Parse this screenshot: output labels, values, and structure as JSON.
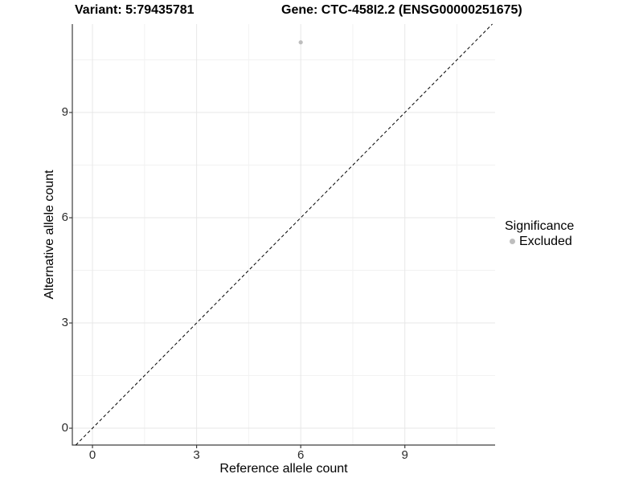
{
  "chart_data": {
    "type": "scatter",
    "title_left": "Variant: 5:79435781",
    "title_right": "Gene: CTC-458I2.2 (ENSG00000251675)",
    "xlabel": "Reference allele count",
    "ylabel": "Alternative allele count",
    "xlim": [
      -0.58,
      11.6
    ],
    "ylim": [
      -0.48,
      11.52
    ],
    "x_ticks": [
      0,
      3,
      6,
      9
    ],
    "y_ticks": [
      0,
      3,
      6,
      9
    ],
    "x_minor_ticks": [
      1.5,
      4.5,
      7.5,
      10.5
    ],
    "y_minor_ticks": [
      1.5,
      4.5,
      7.5,
      10.5
    ],
    "grid": "major-and-minor",
    "legend": {
      "title": "Significance",
      "position": "right",
      "items": [
        {
          "label": "Excluded",
          "color": "#bebebe"
        }
      ]
    },
    "series": [
      {
        "name": "Excluded",
        "color": "#bebebe",
        "points": [
          {
            "x": 6,
            "y": 11
          }
        ]
      }
    ],
    "reference_line": {
      "kind": "identity y=x",
      "style": "dashed",
      "color": "#000000"
    },
    "colors": {
      "grid_major": "#e7e7e7",
      "grid_minor": "#f2f2f2",
      "axis_line": "#3d3d3d",
      "tick_mark": "#3d3d3d",
      "point": "#bebebe"
    }
  }
}
